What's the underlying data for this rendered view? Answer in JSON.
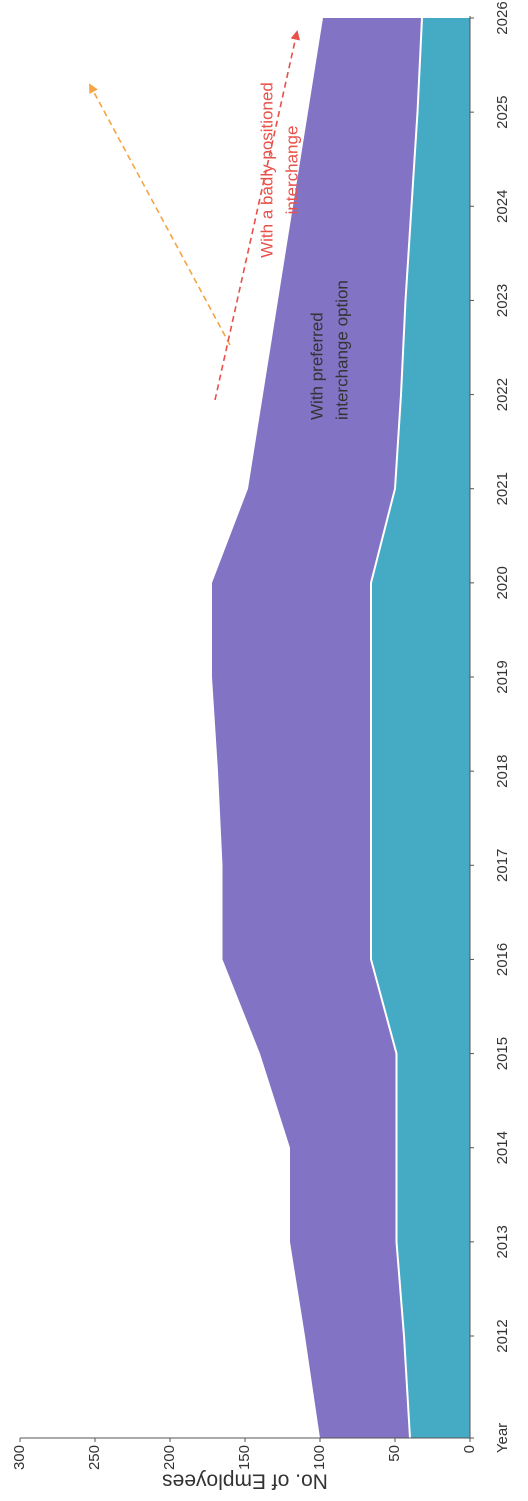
{
  "chart_data": {
    "type": "area",
    "stacked": true,
    "ylabel": "No. of Employees",
    "categories": [
      "Year",
      "2012",
      "2013",
      "2014",
      "2015",
      "2016",
      "2017",
      "2018",
      "2019",
      "2020",
      "2021",
      "2022",
      "2023",
      "2024",
      "2025",
      "2026"
    ],
    "series": [
      {
        "color": "#3ba7c1",
        "values": [
          40,
          44,
          49,
          49,
          49,
          66,
          66,
          66,
          66,
          66,
          50,
          46,
          43,
          39,
          35,
          32
        ]
      },
      {
        "color": "#7b6cc2",
        "values": [
          60,
          66,
          71,
          71,
          91,
          99,
          99,
          102,
          106,
          106,
          98,
          92,
          85,
          79,
          73,
          66
        ]
      }
    ],
    "ylim": [
      0,
      300
    ],
    "yticks": [
      0,
      50,
      100,
      150,
      200,
      250,
      300
    ],
    "annotations": [
      {
        "lines": [
          "With preferred",
          "interchange option"
        ],
        "color": "#333333",
        "arrow_color": "#f5a444"
      },
      {
        "lines": [
          "With a badly positioned",
          "interchange"
        ],
        "color": "#e8504a",
        "arrow_color": "#e8504a"
      }
    ]
  }
}
